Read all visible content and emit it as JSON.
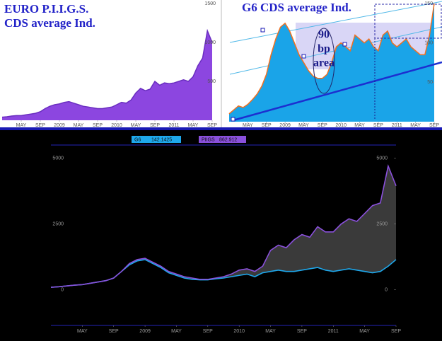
{
  "chart_data": [
    {
      "type": "area",
      "title": "EURO P.I.I.G.S.",
      "subtitle": "CDS average Ind.",
      "color": "#8c46e0",
      "line_color": "#6a2ec0",
      "xlim": [
        0,
        44
      ],
      "ylim": [
        0,
        1500
      ],
      "yticks": [
        500,
        1000,
        1500
      ],
      "xticks": [
        {
          "value": 4,
          "label": "MAY"
        },
        {
          "value": 8,
          "label": "SEP"
        },
        {
          "value": 12,
          "label": "2009"
        },
        {
          "value": 16,
          "label": "MAY"
        },
        {
          "value": 20,
          "label": "SEP"
        },
        {
          "value": 24,
          "label": "2010"
        },
        {
          "value": 28,
          "label": "MAY"
        },
        {
          "value": 32,
          "label": "SEP"
        },
        {
          "value": 36,
          "label": "2011"
        },
        {
          "value": 40,
          "label": "MAY"
        },
        {
          "value": 44,
          "label": "SEP"
        }
      ],
      "x": [
        0,
        1,
        2,
        3,
        4,
        5,
        6,
        7,
        8,
        9,
        10,
        11,
        12,
        13,
        14,
        15,
        16,
        17,
        18,
        19,
        20,
        21,
        22,
        23,
        24,
        25,
        26,
        27,
        28,
        29,
        30,
        31,
        32,
        33,
        34,
        35,
        36,
        37,
        38,
        39,
        40,
        41,
        42,
        43,
        44
      ],
      "values": [
        40,
        45,
        55,
        60,
        60,
        70,
        80,
        90,
        110,
        150,
        180,
        200,
        210,
        230,
        240,
        220,
        200,
        180,
        170,
        160,
        150,
        150,
        160,
        170,
        200,
        230,
        220,
        260,
        350,
        410,
        380,
        400,
        500,
        450,
        480,
        470,
        480,
        500,
        520,
        500,
        560,
        700,
        800,
        1150,
        1000
      ]
    },
    {
      "type": "area",
      "title": "G6 CDS average Ind.",
      "annotations": [
        "90",
        "bp",
        "area"
      ],
      "color": "#1aa4e8",
      "line_color": "#f07020",
      "xlim": [
        0,
        44
      ],
      "ylim": [
        0,
        150
      ],
      "yticks": [
        50,
        100,
        150
      ],
      "xticks": [
        {
          "value": 4,
          "label": "MAY"
        },
        {
          "value": 8,
          "label": "SEP"
        },
        {
          "value": 12,
          "label": "2009"
        },
        {
          "value": 16,
          "label": "MAY"
        },
        {
          "value": 20,
          "label": "SEP"
        },
        {
          "value": 24,
          "label": "2010"
        },
        {
          "value": 28,
          "label": "MAY"
        },
        {
          "value": 32,
          "label": "SEP"
        },
        {
          "value": 36,
          "label": "2011"
        },
        {
          "value": 40,
          "label": "MAY"
        },
        {
          "value": 44,
          "label": "SEP"
        }
      ],
      "x": [
        0,
        1,
        2,
        3,
        4,
        5,
        6,
        7,
        8,
        9,
        10,
        11,
        12,
        13,
        14,
        15,
        16,
        17,
        18,
        19,
        20,
        21,
        22,
        23,
        24,
        25,
        26,
        27,
        28,
        29,
        30,
        31,
        32,
        33,
        34,
        35,
        36,
        37,
        38,
        39,
        40,
        41,
        42,
        43,
        44
      ],
      "values": [
        10,
        15,
        20,
        18,
        22,
        28,
        35,
        45,
        60,
        85,
        105,
        120,
        125,
        115,
        100,
        85,
        75,
        65,
        58,
        55,
        55,
        60,
        75,
        95,
        100,
        95,
        90,
        110,
        105,
        100,
        105,
        95,
        90,
        110,
        115,
        100,
        95,
        100,
        105,
        95,
        90,
        85,
        85,
        110,
        150
      ]
    },
    {
      "type": "line",
      "xlim": [
        0,
        44
      ],
      "ylim": [
        -1350,
        5500
      ],
      "yticks": [
        0,
        2500,
        5000
      ],
      "xticks": [
        {
          "value": 4,
          "label": "MAY"
        },
        {
          "value": 8,
          "label": "SEP"
        },
        {
          "value": 12,
          "label": "2009"
        },
        {
          "value": 16,
          "label": "MAY"
        },
        {
          "value": 20,
          "label": "SEP"
        },
        {
          "value": 24,
          "label": "2010"
        },
        {
          "value": 28,
          "label": "MAY"
        },
        {
          "value": 32,
          "label": "SEP"
        },
        {
          "value": 36,
          "label": "2011"
        },
        {
          "value": 40,
          "label": "MAY"
        },
        {
          "value": 44,
          "label": "SEP"
        }
      ],
      "x": [
        0,
        1,
        2,
        3,
        4,
        5,
        6,
        7,
        8,
        9,
        10,
        11,
        12,
        13,
        14,
        15,
        16,
        17,
        18,
        19,
        20,
        21,
        22,
        23,
        24,
        25,
        26,
        27,
        28,
        29,
        30,
        31,
        32,
        33,
        34,
        35,
        36,
        37,
        38,
        39,
        40,
        41,
        42,
        43,
        44
      ],
      "series": [
        {
          "name": "G6",
          "legend_value": 142.1425,
          "color": "#1ea8ec",
          "values": [
            100,
            120,
            150,
            180,
            200,
            250,
            300,
            350,
            450,
            700,
            950,
            1100,
            1150,
            1000,
            850,
            650,
            550,
            450,
            400,
            380,
            380,
            420,
            450,
            500,
            550,
            600,
            500,
            650,
            700,
            750,
            700,
            700,
            750,
            800,
            850,
            750,
            700,
            750,
            800,
            750,
            700,
            650,
            700,
            900,
            1150
          ]
        },
        {
          "name": "PIIGS",
          "legend_value": 862.912,
          "color": "#8a50dc",
          "values": [
            100,
            120,
            150,
            180,
            200,
            250,
            300,
            350,
            450,
            700,
            1000,
            1150,
            1200,
            1050,
            900,
            700,
            600,
            500,
            450,
            400,
            400,
            450,
            500,
            600,
            750,
            800,
            700,
            900,
            1500,
            1700,
            1600,
            1900,
            2100,
            2000,
            2400,
            2200,
            2200,
            2500,
            2700,
            2600,
            2900,
            3200,
            3300,
            4700,
            3950
          ]
        }
      ]
    }
  ]
}
